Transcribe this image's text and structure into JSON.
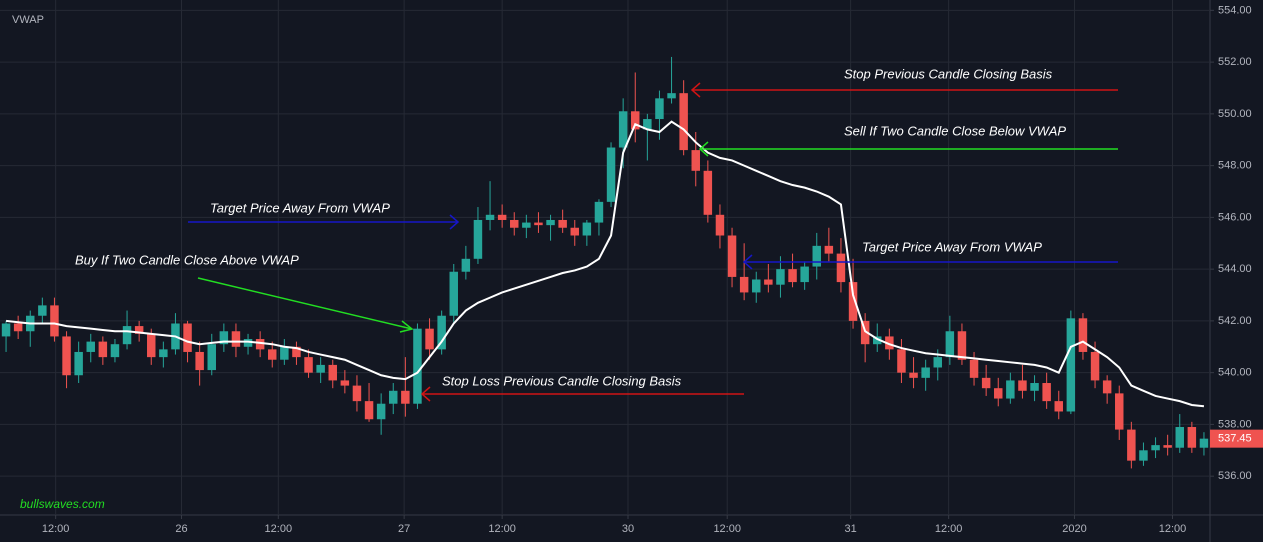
{
  "chart_data": {
    "type": "candlestick",
    "title": "VWAP",
    "watermark": "bullswaves.com",
    "up_color": "#26a69a",
    "down_color": "#ef5350",
    "vwap_color": "#ffffff",
    "ylim": [
      534.5,
      554.4
    ],
    "yticks": [
      {
        "value": 536,
        "label": "536.00"
      },
      {
        "value": 538,
        "label": "538.00"
      },
      {
        "value": 540,
        "label": "540.00"
      },
      {
        "value": 542,
        "label": "542.00"
      },
      {
        "value": 544,
        "label": "544.00"
      },
      {
        "value": 546,
        "label": "546.00"
      },
      {
        "value": 548,
        "label": "548.00"
      },
      {
        "value": 550,
        "label": "550.00"
      },
      {
        "value": 552,
        "label": "552.00"
      },
      {
        "value": 554,
        "label": "554.00"
      }
    ],
    "xlim": [
      0,
      100
    ],
    "xticks": [
      {
        "value": 4.6,
        "label": "12:00"
      },
      {
        "value": 15,
        "label": "26"
      },
      {
        "value": 23,
        "label": "12:00"
      },
      {
        "value": 33.4,
        "label": "27"
      },
      {
        "value": 41.5,
        "label": "12:00"
      },
      {
        "value": 51.9,
        "label": "30"
      },
      {
        "value": 60.1,
        "label": "12:00"
      },
      {
        "value": 70.3,
        "label": "31"
      },
      {
        "value": 78.4,
        "label": "12:00"
      },
      {
        "value": 88.8,
        "label": "2020"
      },
      {
        "value": 96.9,
        "label": "12:00"
      }
    ],
    "grid": true,
    "last_price": {
      "value": 537.45,
      "label": "537.45"
    },
    "annotations": [
      "Stop Previous Candle Closing Basis",
      "Sell If Two Candle Close Below VWAP",
      "Target Price Away From VWAP",
      "Target Price Away From VWAP",
      "Buy If Two Candle Close Above VWAP",
      "Stop Loss Previous Candle Closing Basis"
    ],
    "ohlc": [
      [
        541.4,
        542.0,
        540.8,
        541.9
      ],
      [
        541.9,
        542.2,
        541.3,
        541.6
      ],
      [
        541.6,
        542.4,
        541.0,
        542.2
      ],
      [
        542.2,
        542.9,
        541.9,
        542.6
      ],
      [
        542.6,
        542.9,
        541.2,
        541.4
      ],
      [
        541.4,
        541.6,
        539.4,
        539.9
      ],
      [
        539.9,
        541.2,
        539.6,
        540.8
      ],
      [
        540.8,
        541.5,
        540.4,
        541.2
      ],
      [
        541.2,
        541.4,
        540.3,
        540.6
      ],
      [
        540.6,
        541.3,
        540.4,
        541.1
      ],
      [
        541.1,
        542.4,
        540.9,
        541.8
      ],
      [
        541.8,
        542.0,
        541.2,
        541.5
      ],
      [
        541.5,
        541.7,
        540.3,
        540.6
      ],
      [
        540.6,
        541.2,
        540.2,
        540.9
      ],
      [
        540.9,
        542.3,
        540.7,
        541.9
      ],
      [
        541.9,
        542.0,
        540.4,
        540.8
      ],
      [
        540.8,
        541.2,
        539.5,
        540.1
      ],
      [
        540.1,
        541.5,
        539.9,
        541.1
      ],
      [
        541.1,
        541.9,
        540.8,
        541.6
      ],
      [
        541.6,
        541.9,
        540.6,
        541.0
      ],
      [
        541.0,
        541.5,
        540.7,
        541.3
      ],
      [
        541.3,
        541.6,
        540.6,
        540.9
      ],
      [
        540.9,
        541.2,
        540.2,
        540.5
      ],
      [
        540.5,
        541.3,
        540.3,
        541.0
      ],
      [
        541.0,
        541.2,
        540.3,
        540.6
      ],
      [
        540.6,
        540.9,
        539.8,
        540.0
      ],
      [
        540.0,
        540.6,
        539.6,
        540.3
      ],
      [
        540.3,
        540.5,
        539.4,
        539.7
      ],
      [
        539.7,
        540.1,
        539.2,
        539.5
      ],
      [
        539.5,
        539.9,
        538.5,
        538.9
      ],
      [
        538.9,
        539.6,
        538.1,
        538.2
      ],
      [
        538.2,
        539.2,
        537.6,
        538.8
      ],
      [
        538.8,
        539.6,
        538.4,
        539.3
      ],
      [
        539.3,
        540.6,
        538.3,
        538.8
      ],
      [
        538.8,
        541.9,
        538.6,
        541.7
      ],
      [
        541.7,
        542.1,
        540.5,
        540.9
      ],
      [
        540.9,
        542.4,
        540.7,
        542.2
      ],
      [
        542.2,
        544.2,
        541.9,
        543.9
      ],
      [
        543.9,
        544.9,
        543.6,
        544.4
      ],
      [
        544.4,
        546.4,
        544.2,
        545.9
      ],
      [
        545.9,
        547.4,
        545.5,
        546.1
      ],
      [
        546.1,
        546.5,
        545.6,
        545.9
      ],
      [
        545.9,
        546.2,
        545.3,
        545.6
      ],
      [
        545.6,
        546.1,
        545.2,
        545.8
      ],
      [
        545.8,
        546.2,
        545.4,
        545.7
      ],
      [
        545.7,
        546.1,
        545.1,
        545.9
      ],
      [
        545.9,
        546.3,
        545.4,
        545.6
      ],
      [
        545.6,
        545.9,
        544.9,
        545.3
      ],
      [
        545.3,
        545.9,
        544.9,
        545.8
      ],
      [
        545.8,
        546.7,
        545.3,
        546.6
      ],
      [
        546.6,
        548.9,
        546.4,
        548.7
      ],
      [
        548.7,
        550.6,
        547.9,
        550.1
      ],
      [
        550.1,
        551.6,
        548.9,
        549.4
      ],
      [
        549.4,
        550.0,
        548.2,
        549.8
      ],
      [
        549.8,
        550.9,
        549.0,
        550.6
      ],
      [
        550.6,
        552.2,
        550.4,
        550.8
      ],
      [
        550.8,
        551.3,
        548.4,
        548.6
      ],
      [
        548.6,
        549.3,
        547.2,
        547.8
      ],
      [
        547.8,
        548.2,
        545.8,
        546.1
      ],
      [
        546.1,
        546.5,
        544.8,
        545.3
      ],
      [
        545.3,
        545.6,
        543.3,
        543.7
      ],
      [
        543.7,
        545.0,
        542.8,
        543.1
      ],
      [
        543.1,
        543.9,
        542.7,
        543.6
      ],
      [
        543.6,
        544.2,
        543.1,
        543.4
      ],
      [
        543.4,
        544.5,
        542.9,
        544.0
      ],
      [
        544.0,
        544.6,
        543.3,
        543.5
      ],
      [
        543.5,
        544.3,
        543.2,
        544.1
      ],
      [
        544.1,
        545.4,
        543.6,
        544.9
      ],
      [
        544.9,
        545.6,
        544.3,
        544.6
      ],
      [
        544.6,
        545.2,
        543.1,
        543.5
      ],
      [
        543.5,
        544.4,
        541.7,
        542.0
      ],
      [
        542.0,
        542.3,
        540.4,
        541.1
      ],
      [
        541.1,
        541.9,
        540.8,
        541.4
      ],
      [
        541.4,
        541.7,
        540.5,
        540.9
      ],
      [
        540.9,
        541.3,
        539.6,
        540.0
      ],
      [
        540.0,
        540.6,
        539.4,
        539.8
      ],
      [
        539.8,
        540.5,
        539.3,
        540.2
      ],
      [
        540.2,
        540.9,
        539.7,
        540.6
      ],
      [
        540.6,
        542.2,
        540.3,
        541.6
      ],
      [
        541.6,
        541.9,
        540.3,
        540.5
      ],
      [
        540.5,
        540.8,
        539.5,
        539.8
      ],
      [
        539.8,
        540.3,
        539.1,
        539.4
      ],
      [
        539.4,
        539.8,
        538.7,
        539.0
      ],
      [
        539.0,
        540.0,
        538.8,
        539.7
      ],
      [
        539.7,
        540.3,
        539.0,
        539.3
      ],
      [
        539.3,
        539.9,
        538.9,
        539.6
      ],
      [
        539.6,
        540.0,
        538.6,
        538.9
      ],
      [
        538.9,
        539.3,
        538.2,
        538.5
      ],
      [
        538.5,
        542.4,
        538.4,
        542.1
      ],
      [
        542.1,
        542.3,
        540.5,
        540.8
      ],
      [
        540.8,
        541.2,
        539.4,
        539.7
      ],
      [
        539.7,
        539.9,
        538.8,
        539.2
      ],
      [
        539.2,
        539.5,
        537.4,
        537.8
      ],
      [
        537.8,
        538.1,
        536.3,
        536.6
      ],
      [
        536.6,
        537.3,
        536.4,
        537.0
      ],
      [
        537.0,
        537.5,
        536.7,
        537.2
      ],
      [
        537.2,
        537.6,
        536.8,
        537.1
      ],
      [
        537.1,
        538.4,
        536.9,
        537.9
      ],
      [
        537.9,
        538.1,
        536.9,
        537.1
      ],
      [
        537.1,
        537.7,
        536.8,
        537.45
      ]
    ],
    "vwap": [
      542.0,
      541.95,
      541.9,
      541.9,
      541.9,
      541.8,
      541.75,
      541.7,
      541.65,
      541.6,
      541.6,
      541.55,
      541.5,
      541.45,
      541.4,
      541.2,
      541.1,
      541.15,
      541.2,
      541.2,
      541.2,
      541.15,
      541.1,
      541.0,
      540.95,
      540.8,
      540.7,
      540.6,
      540.5,
      540.3,
      540.1,
      539.9,
      539.8,
      539.75,
      540.0,
      540.6,
      541.2,
      541.9,
      542.4,
      542.7,
      542.9,
      543.1,
      543.25,
      543.4,
      543.55,
      543.7,
      543.85,
      543.95,
      544.1,
      544.4,
      545.3,
      548.5,
      549.6,
      549.4,
      549.3,
      549.7,
      549.4,
      548.9,
      548.5,
      548.3,
      548.2,
      548.0,
      547.8,
      547.6,
      547.4,
      547.25,
      547.15,
      547.0,
      546.8,
      546.5,
      543.0,
      541.6,
      541.3,
      541.1,
      540.95,
      540.85,
      540.75,
      540.7,
      540.65,
      540.6,
      540.55,
      540.5,
      540.45,
      540.4,
      540.35,
      540.3,
      540.2,
      540.0,
      541.0,
      541.2,
      540.9,
      540.6,
      540.2,
      539.5,
      539.3,
      539.1,
      539.0,
      538.9,
      538.75,
      538.7
    ]
  }
}
